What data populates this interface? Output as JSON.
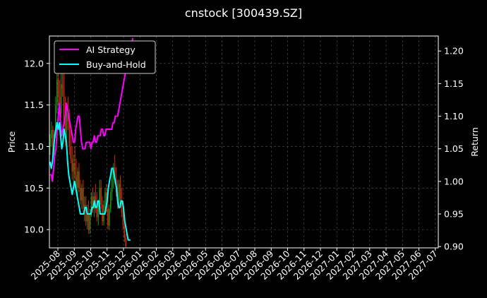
{
  "chart_data": {
    "type": "line",
    "title": "cnstock [300439.SZ]",
    "ylabel": "Price",
    "ylabel_right": "Return",
    "ylim": [
      9.78,
      12.33
    ],
    "ylim_right": [
      0.898,
      1.223
    ],
    "y_ticks": [
      "10.0",
      "10.5",
      "11.0",
      "11.5",
      "12.0"
    ],
    "y_ticks_right": [
      "0.90",
      "0.95",
      "1.00",
      "1.05",
      "1.10",
      "1.15",
      "1.20"
    ],
    "x_ticks": [
      "2025-08",
      "2025-09",
      "2025-10",
      "2025-11",
      "2025-12",
      "2026-01",
      "2026-02",
      "2026-03",
      "2026-04",
      "2026-05",
      "2026-06",
      "2026-07",
      "2026-08",
      "2026-09",
      "2026-10",
      "2026-11",
      "2026-12",
      "2027-01",
      "2027-02",
      "2027-03",
      "2027-04",
      "2027-05",
      "2027-06",
      "2027-07"
    ],
    "grid": true,
    "legend_position": "top-left",
    "colors": {
      "background": "#000000",
      "ai": "#ff00ff",
      "bh": "#00ffff",
      "up": "#1f8a1f",
      "down": "#d42a0a"
    },
    "series": [
      {
        "name": "AI Strategy",
        "axis": "right",
        "points": [
          [
            0,
            1.01
          ],
          [
            1,
            1.01
          ],
          [
            2,
            1.0
          ],
          [
            3,
            1.02
          ],
          [
            4,
            1.04
          ],
          [
            5,
            1.05
          ],
          [
            6,
            1.08
          ],
          [
            7,
            1.1
          ],
          [
            8,
            1.12
          ],
          [
            9,
            1.09
          ],
          [
            10,
            1.07
          ],
          [
            11,
            1.08
          ],
          [
            12,
            1.09
          ],
          [
            13,
            1.1
          ],
          [
            14,
            1.12
          ],
          [
            15,
            1.11
          ],
          [
            16,
            1.1
          ],
          [
            17,
            1.09
          ],
          [
            18,
            1.08
          ],
          [
            19,
            1.07
          ],
          [
            20,
            1.06
          ],
          [
            21,
            1.06
          ],
          [
            22,
            1.08
          ],
          [
            23,
            1.09
          ],
          [
            24,
            1.1
          ],
          [
            25,
            1.1
          ],
          [
            26,
            1.08
          ],
          [
            27,
            1.06
          ],
          [
            28,
            1.05
          ],
          [
            29,
            1.05
          ],
          [
            30,
            1.05
          ],
          [
            31,
            1.06
          ],
          [
            32,
            1.06
          ],
          [
            33,
            1.06
          ],
          [
            34,
            1.06
          ],
          [
            35,
            1.05
          ],
          [
            36,
            1.06
          ],
          [
            37,
            1.06
          ],
          [
            38,
            1.07
          ],
          [
            39,
            1.06
          ],
          [
            40,
            1.06
          ],
          [
            41,
            1.07
          ],
          [
            42,
            1.07
          ],
          [
            43,
            1.07
          ],
          [
            44,
            1.08
          ],
          [
            45,
            1.08
          ],
          [
            46,
            1.07
          ],
          [
            47,
            1.07
          ],
          [
            48,
            1.08
          ],
          [
            49,
            1.08
          ],
          [
            50,
            1.08
          ],
          [
            51,
            1.08
          ],
          [
            52,
            1.08
          ],
          [
            53,
            1.08
          ],
          [
            54,
            1.09
          ],
          [
            55,
            1.09
          ],
          [
            56,
            1.1
          ],
          [
            57,
            1.1
          ],
          [
            58,
            1.1
          ],
          [
            59,
            1.11
          ],
          [
            60,
            1.12
          ],
          [
            61,
            1.13
          ],
          [
            62,
            1.14
          ],
          [
            63,
            1.15
          ],
          [
            64,
            1.16
          ],
          [
            65,
            1.17
          ],
          [
            66,
            1.18
          ],
          [
            67,
            1.19
          ],
          [
            68,
            1.2
          ],
          [
            69,
            1.21
          ],
          [
            70,
            1.21
          ],
          [
            71,
            1.22
          ]
        ]
      },
      {
        "name": "Buy-and-Hold",
        "axis": "right",
        "points": [
          [
            0,
            1.03
          ],
          [
            1,
            1.02
          ],
          [
            2,
            1.03
          ],
          [
            3,
            1.05
          ],
          [
            4,
            1.07
          ],
          [
            5,
            1.08
          ],
          [
            6,
            1.09
          ],
          [
            7,
            1.08
          ],
          [
            8,
            1.09
          ],
          [
            9,
            1.07
          ],
          [
            10,
            1.05
          ],
          [
            11,
            1.06
          ],
          [
            12,
            1.08
          ],
          [
            13,
            1.07
          ],
          [
            14,
            1.06
          ],
          [
            15,
            1.03
          ],
          [
            16,
            1.01
          ],
          [
            17,
            1.0
          ],
          [
            18,
            0.99
          ],
          [
            19,
            0.98
          ],
          [
            20,
            0.99
          ],
          [
            21,
            1.0
          ],
          [
            22,
            0.99
          ],
          [
            23,
            0.98
          ],
          [
            24,
            0.97
          ],
          [
            25,
            0.96
          ],
          [
            26,
            0.95
          ],
          [
            27,
            0.95
          ],
          [
            28,
            0.95
          ],
          [
            29,
            0.95
          ],
          [
            30,
            0.96
          ],
          [
            31,
            0.96
          ],
          [
            32,
            0.95
          ],
          [
            33,
            0.95
          ],
          [
            34,
            0.95
          ],
          [
            35,
            0.95
          ],
          [
            36,
            0.96
          ],
          [
            37,
            0.96
          ],
          [
            38,
            0.97
          ],
          [
            39,
            0.96
          ],
          [
            40,
            0.96
          ],
          [
            41,
            0.97
          ],
          [
            42,
            0.97
          ],
          [
            43,
            0.95
          ],
          [
            44,
            0.95
          ],
          [
            45,
            0.95
          ],
          [
            46,
            0.95
          ],
          [
            47,
            0.95
          ],
          [
            48,
            0.96
          ],
          [
            49,
            0.97
          ],
          [
            50,
            0.99
          ],
          [
            51,
            1.0
          ],
          [
            52,
            1.01
          ],
          [
            53,
            1.02
          ],
          [
            54,
            1.02
          ],
          [
            55,
            1.01
          ],
          [
            56,
            1.0
          ],
          [
            57,
            0.99
          ],
          [
            58,
            0.97
          ],
          [
            59,
            0.96
          ],
          [
            60,
            0.96
          ],
          [
            61,
            0.97
          ],
          [
            62,
            0.97
          ],
          [
            63,
            0.96
          ],
          [
            64,
            0.94
          ],
          [
            65,
            0.93
          ],
          [
            66,
            0.92
          ],
          [
            67,
            0.91
          ],
          [
            68,
            0.91
          ],
          [
            69,
            0.91
          ]
        ]
      }
    ],
    "candles": [
      [
        11.0,
        11.15,
        10.9,
        11.1
      ],
      [
        11.1,
        11.3,
        11.0,
        11.2
      ],
      [
        11.2,
        11.25,
        10.85,
        10.9
      ],
      [
        10.9,
        11.2,
        10.85,
        11.15
      ],
      [
        11.15,
        11.6,
        11.1,
        11.5
      ],
      [
        11.5,
        11.9,
        11.4,
        11.8
      ],
      [
        11.8,
        12.0,
        11.5,
        11.6
      ],
      [
        11.6,
        11.8,
        11.3,
        11.4
      ],
      [
        11.4,
        11.9,
        11.35,
        11.75
      ],
      [
        11.75,
        12.05,
        11.6,
        11.7
      ],
      [
        11.7,
        11.9,
        11.3,
        11.35
      ],
      [
        11.35,
        11.6,
        11.0,
        11.1
      ],
      [
        11.1,
        11.5,
        11.05,
        11.4
      ],
      [
        11.4,
        11.6,
        11.2,
        11.3
      ],
      [
        11.3,
        11.45,
        10.9,
        11.0
      ],
      [
        11.0,
        11.2,
        10.8,
        10.85
      ],
      [
        10.85,
        11.0,
        10.6,
        10.7
      ],
      [
        10.7,
        10.9,
        10.55,
        10.8
      ],
      [
        10.8,
        11.0,
        10.6,
        10.65
      ],
      [
        10.65,
        10.85,
        10.45,
        10.5
      ],
      [
        10.5,
        10.75,
        10.4,
        10.7
      ],
      [
        10.7,
        10.8,
        10.45,
        10.5
      ],
      [
        10.5,
        10.6,
        10.3,
        10.35
      ],
      [
        10.35,
        10.55,
        10.25,
        10.5
      ],
      [
        10.5,
        10.6,
        10.2,
        10.25
      ],
      [
        10.25,
        10.4,
        10.1,
        10.3
      ],
      [
        10.3,
        10.4,
        10.05,
        10.1
      ],
      [
        10.1,
        10.3,
        10.0,
        10.2
      ],
      [
        10.2,
        10.35,
        9.95,
        10.0
      ],
      [
        10.0,
        10.25,
        9.95,
        10.2
      ],
      [
        10.2,
        10.45,
        10.15,
        10.4
      ],
      [
        10.4,
        10.5,
        10.2,
        10.25
      ],
      [
        10.25,
        10.45,
        10.15,
        10.4
      ],
      [
        10.4,
        10.55,
        10.2,
        10.3
      ],
      [
        10.3,
        10.45,
        10.1,
        10.15
      ],
      [
        10.15,
        10.35,
        10.05,
        10.3
      ],
      [
        10.3,
        10.6,
        10.25,
        10.5
      ],
      [
        10.5,
        10.6,
        10.25,
        10.3
      ],
      [
        10.3,
        10.4,
        10.05,
        10.1
      ],
      [
        10.1,
        10.35,
        10.05,
        10.3
      ],
      [
        10.3,
        10.5,
        10.2,
        10.45
      ],
      [
        10.45,
        10.55,
        10.2,
        10.25
      ],
      [
        10.25,
        10.4,
        10.0,
        10.05
      ],
      [
        10.05,
        10.3,
        10.0,
        10.25
      ],
      [
        10.25,
        10.5,
        10.2,
        10.45
      ],
      [
        10.45,
        10.7,
        10.35,
        10.6
      ],
      [
        10.6,
        10.8,
        10.5,
        10.75
      ],
      [
        10.75,
        10.9,
        10.55,
        10.6
      ],
      [
        10.6,
        10.75,
        10.4,
        10.45
      ],
      [
        10.45,
        10.6,
        10.25,
        10.3
      ],
      [
        10.3,
        10.6,
        10.25,
        10.55
      ],
      [
        10.55,
        10.65,
        10.3,
        10.35
      ],
      [
        10.35,
        10.5,
        10.15,
        10.2
      ],
      [
        10.2,
        10.35,
        10.0,
        10.05
      ],
      [
        10.05,
        10.15,
        9.85,
        9.9
      ],
      [
        9.9,
        9.95,
        9.78,
        9.8
      ]
    ]
  },
  "legend": {
    "ai_label": "AI Strategy",
    "bh_label": "Buy-and-Hold"
  }
}
